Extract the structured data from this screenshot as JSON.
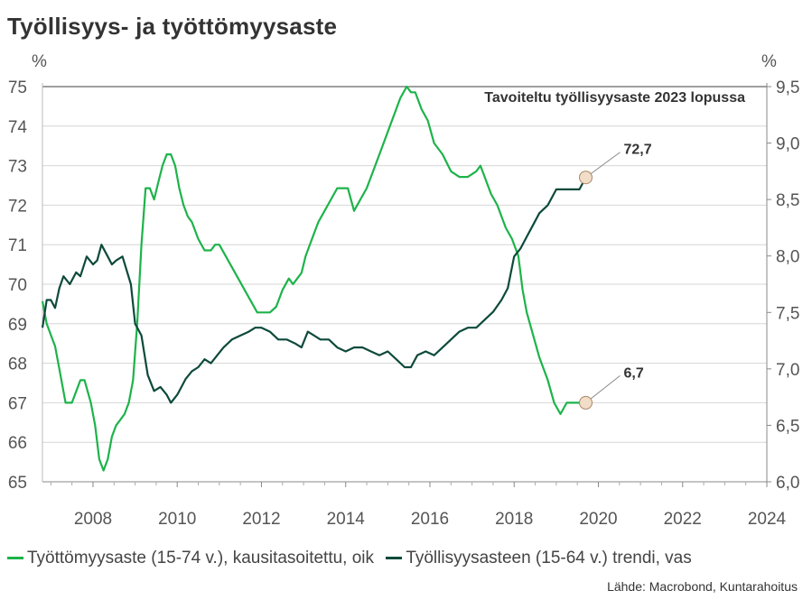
{
  "title": "Työllisyys- ja työttömyysaste",
  "source": "Lähde: Macrobond, Kuntarahoitus",
  "chart_data": {
    "type": "line",
    "title": "Työllisyys- ja työttömyysaste",
    "left_axis": {
      "unit": "%",
      "ylim": [
        65,
        75
      ],
      "ticks": [
        "65",
        "66",
        "67",
        "68",
        "69",
        "70",
        "71",
        "72",
        "73",
        "74",
        "75"
      ]
    },
    "right_axis": {
      "unit": "%",
      "ylim": [
        6.0,
        9.5
      ],
      "ticks": [
        "6,0",
        "6,5",
        "7,0",
        "7,5",
        "8,0",
        "8,5",
        "9,0",
        "9,5"
      ]
    },
    "x_axis": {
      "xlim": [
        2006.8,
        2024
      ],
      "ticks": [
        "2008",
        "2010",
        "2012",
        "2014",
        "2016",
        "2018",
        "2020",
        "2022",
        "2024"
      ]
    },
    "grid": true,
    "legend_position": "bottom",
    "annotation": "Tavoiteltu työllisyysaste 2023 lopussa",
    "annotation_value": 75,
    "series": [
      {
        "name": "Työttömyysaste (15-74 v.), kausitasoitettu, oik",
        "axis": "right",
        "color": "#1db34a",
        "x": [
          2006.8,
          2006.9,
          2007.0,
          2007.1,
          2007.2,
          2007.35,
          2007.5,
          2007.6,
          2007.7,
          2007.8,
          2007.95,
          2008.05,
          2008.15,
          2008.25,
          2008.35,
          2008.45,
          2008.55,
          2008.65,
          2008.75,
          2008.85,
          2008.95,
          2009.05,
          2009.15,
          2009.25,
          2009.35,
          2009.45,
          2009.55,
          2009.65,
          2009.75,
          2009.85,
          2009.95,
          2010.05,
          2010.15,
          2010.25,
          2010.35,
          2010.5,
          2010.65,
          2010.8,
          2010.9,
          2011.0,
          2011.15,
          2011.3,
          2011.45,
          2011.6,
          2011.75,
          2011.9,
          2012.05,
          2012.2,
          2012.35,
          2012.5,
          2012.65,
          2012.75,
          2012.85,
          2012.95,
          2013.05,
          2013.2,
          2013.35,
          2013.5,
          2013.65,
          2013.8,
          2013.95,
          2014.05,
          2014.2,
          2014.35,
          2014.5,
          2014.7,
          2014.9,
          2015.1,
          2015.3,
          2015.45,
          2015.55,
          2015.65,
          2015.8,
          2015.95,
          2016.1,
          2016.3,
          2016.5,
          2016.7,
          2016.9,
          2017.1,
          2017.2,
          2017.3,
          2017.45,
          2017.6,
          2017.8,
          2017.95,
          2018.1,
          2018.2,
          2018.3,
          2018.45,
          2018.6,
          2018.8,
          2018.95,
          2019.1,
          2019.25,
          2019.4,
          2019.55,
          2019.7
        ],
        "values": [
          7.6,
          7.4,
          7.3,
          7.2,
          7.0,
          6.7,
          6.7,
          6.8,
          6.9,
          6.9,
          6.7,
          6.5,
          6.2,
          6.1,
          6.2,
          6.4,
          6.5,
          6.55,
          6.6,
          6.7,
          6.9,
          7.4,
          8.1,
          8.6,
          8.6,
          8.5,
          8.65,
          8.8,
          8.9,
          8.9,
          8.8,
          8.6,
          8.45,
          8.35,
          8.3,
          8.15,
          8.05,
          8.05,
          8.1,
          8.1,
          8.0,
          7.9,
          7.8,
          7.7,
          7.6,
          7.5,
          7.5,
          7.5,
          7.55,
          7.7,
          7.8,
          7.75,
          7.8,
          7.85,
          8.0,
          8.15,
          8.3,
          8.4,
          8.5,
          8.6,
          8.6,
          8.6,
          8.4,
          8.5,
          8.6,
          8.8,
          9.0,
          9.2,
          9.4,
          9.5,
          9.45,
          9.45,
          9.3,
          9.2,
          9.0,
          8.9,
          8.75,
          8.7,
          8.7,
          8.75,
          8.8,
          8.7,
          8.55,
          8.45,
          8.25,
          8.15,
          8.0,
          7.7,
          7.5,
          7.3,
          7.1,
          6.9,
          6.7,
          6.6,
          6.7,
          6.7,
          6.7,
          6.7
        ],
        "end_label": "6,7",
        "end_value": 6.7
      },
      {
        "name": "Työllisyysasteen (15-64 v.) trendi, vas",
        "axis": "left",
        "color": "#0d4a3b",
        "x": [
          2006.8,
          2006.9,
          2007.0,
          2007.1,
          2007.2,
          2007.3,
          2007.45,
          2007.6,
          2007.7,
          2007.85,
          2008.0,
          2008.1,
          2008.2,
          2008.35,
          2008.45,
          2008.55,
          2008.7,
          2008.9,
          2009.0,
          2009.15,
          2009.3,
          2009.45,
          2009.6,
          2009.75,
          2009.85,
          2010.0,
          2010.1,
          2010.2,
          2010.35,
          2010.5,
          2010.65,
          2010.8,
          2010.95,
          2011.1,
          2011.3,
          2011.5,
          2011.7,
          2011.85,
          2012.0,
          2012.2,
          2012.4,
          2012.6,
          2012.8,
          2012.95,
          2013.1,
          2013.25,
          2013.4,
          2013.6,
          2013.8,
          2014.0,
          2014.2,
          2014.4,
          2014.6,
          2014.8,
          2015.0,
          2015.2,
          2015.4,
          2015.55,
          2015.7,
          2015.9,
          2016.1,
          2016.3,
          2016.5,
          2016.7,
          2016.9,
          2017.1,
          2017.3,
          2017.5,
          2017.7,
          2017.85,
          2018.0,
          2018.15,
          2018.3,
          2018.45,
          2018.6,
          2018.8,
          2019.0,
          2019.2,
          2019.4,
          2019.55,
          2019.7
        ],
        "values": [
          68.9,
          69.6,
          69.6,
          69.4,
          69.9,
          70.2,
          70.0,
          70.3,
          70.2,
          70.7,
          70.5,
          70.6,
          71.0,
          70.7,
          70.5,
          70.6,
          70.7,
          70.0,
          69.0,
          68.7,
          67.7,
          67.3,
          67.4,
          67.2,
          67.0,
          67.2,
          67.4,
          67.6,
          67.8,
          67.9,
          68.1,
          68.0,
          68.2,
          68.4,
          68.6,
          68.7,
          68.8,
          68.9,
          68.9,
          68.8,
          68.6,
          68.6,
          68.5,
          68.4,
          68.8,
          68.7,
          68.6,
          68.6,
          68.4,
          68.3,
          68.4,
          68.4,
          68.3,
          68.2,
          68.3,
          68.1,
          67.9,
          67.9,
          68.2,
          68.3,
          68.2,
          68.4,
          68.6,
          68.8,
          68.9,
          68.9,
          69.1,
          69.3,
          69.6,
          69.9,
          70.7,
          70.9,
          71.2,
          71.5,
          71.8,
          72.0,
          72.4,
          72.4,
          72.4,
          72.4,
          72.7
        ],
        "end_label": "72,7",
        "end_value": 72.7
      }
    ]
  }
}
